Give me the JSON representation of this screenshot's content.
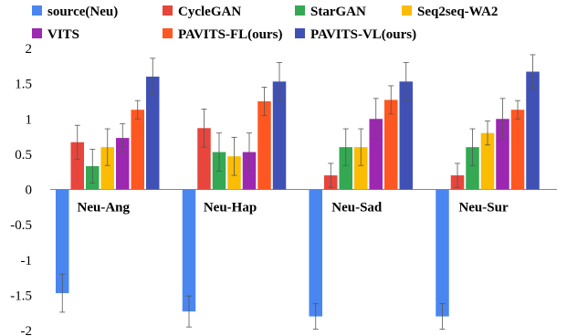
{
  "chart_data": {
    "type": "bar",
    "categories": [
      "Neu-Ang",
      "Neu-Hap",
      "Neu-Sad",
      "Neu-Sur"
    ],
    "series": [
      {
        "name": "source(Neu)",
        "color": "#4a86f0",
        "values": [
          -1.47,
          -1.73,
          -1.8,
          -1.8
        ],
        "errors": [
          0.27,
          0.22,
          0.18,
          0.18
        ]
      },
      {
        "name": "CycleGAN",
        "color": "#e8453c",
        "values": [
          0.67,
          0.87,
          0.2,
          0.2
        ],
        "errors": [
          0.24,
          0.27,
          0.17,
          0.17
        ]
      },
      {
        "name": "StarGAN",
        "color": "#34a853",
        "values": [
          0.33,
          0.53,
          0.6,
          0.6
        ],
        "errors": [
          0.24,
          0.27,
          0.26,
          0.26
        ]
      },
      {
        "name": "Seq2seq-WA2",
        "color": "#fbbc04",
        "values": [
          0.6,
          0.47,
          0.6,
          0.8
        ],
        "errors": [
          0.26,
          0.27,
          0.26,
          0.17
        ]
      },
      {
        "name": "VITS",
        "color": "#9c27b0",
        "values": [
          0.73,
          0.53,
          1.0,
          1.0
        ],
        "errors": [
          0.2,
          0.27,
          0.29,
          0.29
        ]
      },
      {
        "name": "PAVITS-FL(ours)",
        "color": "#ff5722",
        "values": [
          1.13,
          1.25,
          1.27,
          1.13
        ],
        "errors": [
          0.13,
          0.2,
          0.2,
          0.13
        ]
      },
      {
        "name": "PAVITS-VL(ours)",
        "color": "#3f51b5",
        "values": [
          1.6,
          1.53,
          1.53,
          1.67
        ],
        "errors": [
          0.26,
          0.27,
          0.27,
          0.24
        ]
      }
    ],
    "ylim": [
      -2,
      2
    ],
    "yticks": [
      "2",
      "1.5",
      "1",
      "0.5",
      "0",
      "-0.5",
      "-1",
      "-1.5",
      "-2"
    ],
    "legend_position": "top",
    "grid": false,
    "title": "",
    "xlabel": "",
    "ylabel": ""
  }
}
